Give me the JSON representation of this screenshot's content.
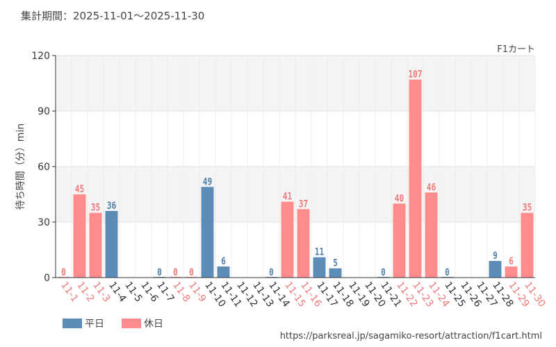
{
  "header": {
    "period_label": "集計期間：2025-11-01～2025-11-30",
    "attraction_label": "F1カート",
    "source_url": "https://parksreal.jp/sagamiko-resort/attraction/f1cart.html"
  },
  "colors": {
    "weekday": "#5b8db8",
    "holiday": "#ff8c8c",
    "weekday_label": "#4f80aa",
    "holiday_label": "#f07a7a",
    "band": "#f4f4f4",
    "grid": "#e2e2e2",
    "axis": "#333333"
  },
  "chart_data": {
    "type": "bar",
    "title": "F1カート",
    "xlabel": "",
    "ylabel": "待ち時間（分）min",
    "ylim": [
      0,
      120
    ],
    "yticks": [
      0,
      30,
      60,
      90,
      120
    ],
    "categories": [
      "11-1",
      "11-2",
      "11-3",
      "11-4",
      "11-5",
      "11-6",
      "11-7",
      "11-8",
      "11-9",
      "11-10",
      "11-11",
      "11-12",
      "11-13",
      "11-14",
      "11-15",
      "11-16",
      "11-17",
      "11-18",
      "11-19",
      "11-20",
      "11-21",
      "11-22",
      "11-23",
      "11-24",
      "11-25",
      "11-26",
      "11-27",
      "11-28",
      "11-29",
      "11-30"
    ],
    "day_types": [
      "holiday",
      "holiday",
      "holiday",
      "weekday",
      "weekday",
      "weekday",
      "weekday",
      "holiday",
      "holiday",
      "weekday",
      "weekday",
      "weekday",
      "weekday",
      "weekday",
      "holiday",
      "holiday",
      "weekday",
      "weekday",
      "weekday",
      "weekday",
      "weekday",
      "holiday",
      "holiday",
      "holiday",
      "weekday",
      "weekday",
      "weekday",
      "weekday",
      "holiday",
      "holiday"
    ],
    "values": [
      0,
      45,
      35,
      36,
      null,
      null,
      0,
      0,
      0,
      49,
      6,
      null,
      null,
      0,
      41,
      37,
      11,
      5,
      null,
      null,
      0,
      40,
      107,
      46,
      0,
      null,
      null,
      9,
      6,
      35
    ],
    "legend": [
      {
        "key": "weekday",
        "label": "平日"
      },
      {
        "key": "holiday",
        "label": "休日"
      }
    ],
    "legend_position": "bottom-left"
  }
}
